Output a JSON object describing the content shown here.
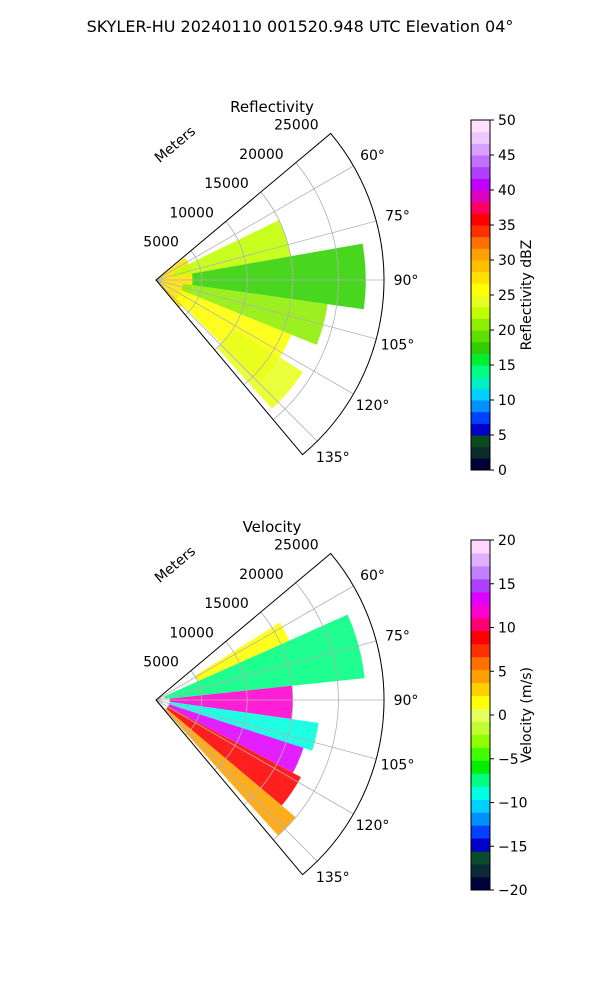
{
  "figure_title": "SKYLER-HU  20240110  001520.948 UTC Elevation 04°",
  "chart_data": [
    {
      "type": "heatmap",
      "projection": "polar-sector",
      "title": "Reflectivity",
      "radial_label": "Meters",
      "radial_ticks": [
        5000,
        10000,
        15000,
        20000,
        25000
      ],
      "radial_tick_labels": [
        "5000",
        "10000",
        "15000",
        "20000",
        "25000"
      ],
      "radial_range": [
        0,
        25000
      ],
      "azimuth_range_deg": [
        50,
        140
      ],
      "azimuth_ticks": [
        60,
        75,
        90,
        105,
        120,
        135
      ],
      "azimuth_tick_labels": [
        "60°",
        "75°",
        "90°",
        "105°",
        "120°",
        "135°"
      ],
      "grid": true,
      "colorbar": {
        "label": "Reflectivity dBZ",
        "range": [
          0,
          50
        ],
        "ticks": [
          0,
          5,
          10,
          15,
          20,
          25,
          30,
          35,
          40,
          45,
          50
        ],
        "tick_labels": [
          "0",
          "5",
          "10",
          "15",
          "20",
          "25",
          "30",
          "35",
          "40",
          "45",
          "50"
        ],
        "palette": "NWSRef"
      },
      "field_features": [
        {
          "az_start": 52,
          "az_end": 140,
          "range_start": 0,
          "range_end": 4000,
          "value": 28
        },
        {
          "az_start": 64,
          "az_end": 80,
          "range_start": 2000,
          "range_end": 15000,
          "value": 23
        },
        {
          "az_start": 80,
          "az_end": 98,
          "range_start": 4000,
          "range_end": 23000,
          "value": 17
        },
        {
          "az_start": 98,
          "az_end": 112,
          "range_start": 3000,
          "range_end": 19000,
          "value": 20
        },
        {
          "az_start": 112,
          "az_end": 134,
          "range_start": 3000,
          "range_end": 16000,
          "value": 25
        },
        {
          "az_start": 122,
          "az_end": 138,
          "range_start": 10000,
          "range_end": 19000,
          "value": 24
        }
      ]
    },
    {
      "type": "heatmap",
      "projection": "polar-sector",
      "title": "Velocity",
      "radial_label": "Meters",
      "radial_ticks": [
        5000,
        10000,
        15000,
        20000,
        25000
      ],
      "radial_tick_labels": [
        "5000",
        "10000",
        "15000",
        "20000",
        "25000"
      ],
      "radial_range": [
        0,
        25000
      ],
      "azimuth_range_deg": [
        50,
        140
      ],
      "azimuth_ticks": [
        60,
        75,
        90,
        105,
        120,
        135
      ],
      "azimuth_tick_labels": [
        "60°",
        "75°",
        "90°",
        "105°",
        "120°",
        "135°"
      ],
      "grid": true,
      "colorbar": {
        "label": "Velocity (m/s)",
        "range": [
          -20,
          20
        ],
        "ticks": [
          -20,
          -15,
          -10,
          -5,
          0,
          5,
          10,
          15,
          20
        ],
        "tick_labels": [
          "−20",
          "−15",
          "−10",
          "−5",
          "0",
          "5",
          "10",
          "15",
          "20"
        ],
        "palette": "NWSVel"
      },
      "field_features": [
        {
          "az_start": 58,
          "az_end": 66,
          "range_start": 5000,
          "range_end": 16000,
          "value": 2
        },
        {
          "az_start": 66,
          "az_end": 84,
          "range_start": 1000,
          "range_end": 23000,
          "value": -7
        },
        {
          "az_start": 84,
          "az_end": 98,
          "range_start": 1500,
          "range_end": 15000,
          "value": 12
        },
        {
          "az_start": 98,
          "az_end": 108,
          "range_start": 1500,
          "range_end": 18000,
          "value": -9
        },
        {
          "az_start": 108,
          "az_end": 118,
          "range_start": 1500,
          "range_end": 17000,
          "value": 14
        },
        {
          "az_start": 118,
          "az_end": 130,
          "range_start": 1500,
          "range_end": 18000,
          "value": 9
        },
        {
          "az_start": 130,
          "az_end": 138,
          "range_start": 1500,
          "range_end": 20000,
          "value": 4
        }
      ]
    }
  ]
}
